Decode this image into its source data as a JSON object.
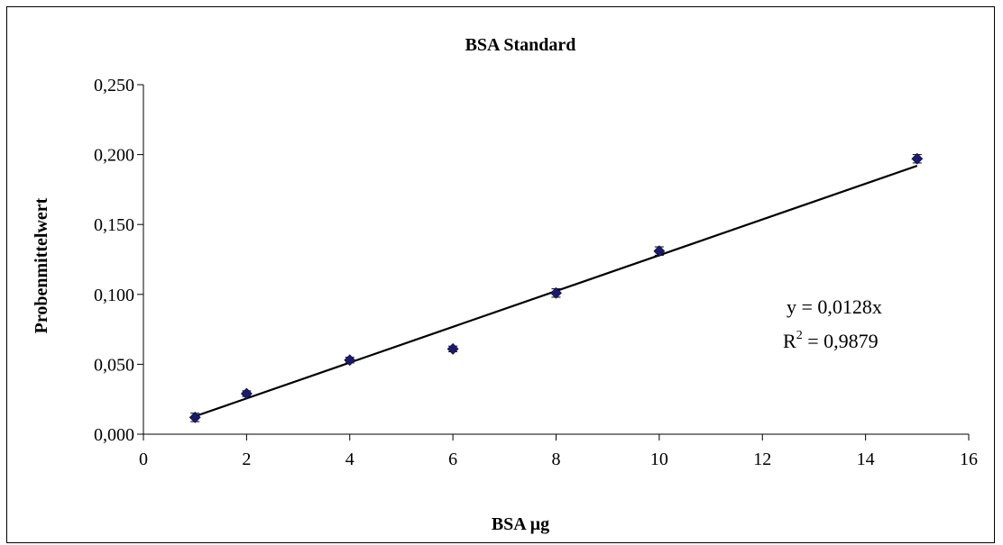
{
  "chart_data": {
    "type": "scatter",
    "title": "BSA Standard",
    "xlabel": "BSA µg",
    "ylabel": "Probenmittelwert",
    "xlim": [
      0,
      16
    ],
    "ylim": [
      0,
      0.25
    ],
    "x_ticks": [
      0,
      2,
      4,
      6,
      8,
      10,
      12,
      14,
      16
    ],
    "x_tick_labels": [
      "0",
      "2",
      "4",
      "6",
      "8",
      "10",
      "12",
      "14",
      "16"
    ],
    "y_ticks": [
      0,
      0.05,
      0.1,
      0.15,
      0.2,
      0.25
    ],
    "y_tick_labels": [
      "0,000",
      "0,050",
      "0,100",
      "0,150",
      "0,200",
      "0,250"
    ],
    "grid": false,
    "series": [
      {
        "points": [
          {
            "x": 1,
            "y": 0.012,
            "err": 0.003
          },
          {
            "x": 2,
            "y": 0.029,
            "err": 0.002
          },
          {
            "x": 4,
            "y": 0.053,
            "err": 0.002
          },
          {
            "x": 6,
            "y": 0.061,
            "err": 0.002
          },
          {
            "x": 8,
            "y": 0.101,
            "err": 0.003
          },
          {
            "x": 10,
            "y": 0.131,
            "err": 0.003
          },
          {
            "x": 15,
            "y": 0.197,
            "err": 0.003
          }
        ],
        "color": "#1a1a6e"
      }
    ],
    "trendline": {
      "slope": 0.0128,
      "intercept": 0,
      "x_range": [
        1,
        15
      ],
      "color": "#000000"
    },
    "annotations": {
      "equation": "y = 0,0128x",
      "r2_prefix": "R",
      "r2_sup": "2",
      "r2_value": " = 0,9879"
    }
  }
}
